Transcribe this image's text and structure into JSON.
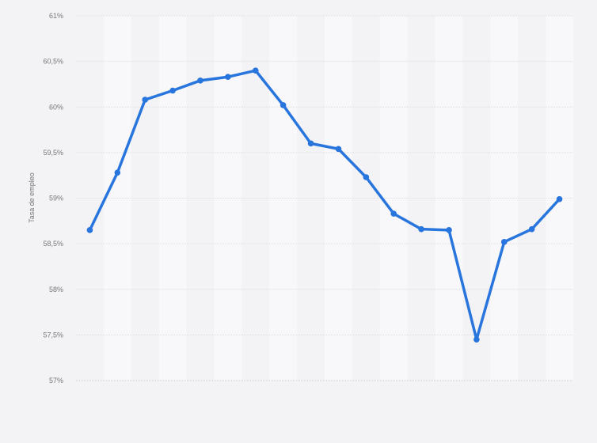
{
  "chart_data": {
    "type": "line",
    "title": "",
    "xlabel": "",
    "ylabel": "Tasa de empleo",
    "ylim": [
      57,
      61
    ],
    "yticks": [
      57,
      57.5,
      58,
      58.5,
      59,
      59.5,
      60,
      60.5,
      61
    ],
    "ytick_labels": [
      "57%",
      "57,5%",
      "58%",
      "58,5%",
      "59%",
      "59,5%",
      "60%",
      "60,5%",
      "61%"
    ],
    "grid": true,
    "series_color": "#2876dd",
    "values": [
      58.65,
      59.28,
      60.08,
      60.18,
      60.29,
      60.33,
      60.4,
      60.02,
      59.6,
      59.54,
      59.23,
      58.83,
      58.66,
      58.65,
      57.45,
      58.52,
      58.66,
      58.99
    ]
  }
}
